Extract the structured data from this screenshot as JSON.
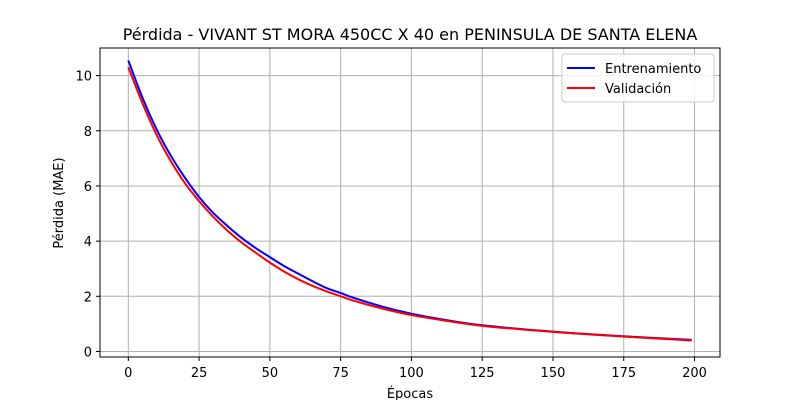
{
  "chart_data": {
    "type": "line",
    "title": "Pérdida - VIVANT ST MORA 450CC X 40 en PENINSULA DE SANTA ELENA",
    "xlabel": "Épocas",
    "ylabel": "Pérdida (MAE)",
    "xlim": [
      -10,
      209
    ],
    "ylim": [
      -0.2,
      11.0
    ],
    "xticks": [
      0,
      25,
      50,
      75,
      100,
      125,
      150,
      175,
      200
    ],
    "yticks": [
      0,
      2,
      4,
      6,
      8,
      10
    ],
    "grid": true,
    "legend_position": "top-right",
    "series": [
      {
        "name": "Entrenamiento",
        "color": "#0000ff",
        "x": [
          0,
          5,
          10,
          15,
          20,
          25,
          30,
          35,
          40,
          45,
          50,
          55,
          60,
          65,
          70,
          75,
          80,
          90,
          100,
          110,
          125,
          150,
          175,
          199
        ],
        "y": [
          10.55,
          9.2,
          8.05,
          7.1,
          6.3,
          5.6,
          5.02,
          4.55,
          4.12,
          3.75,
          3.42,
          3.1,
          2.82,
          2.55,
          2.3,
          2.12,
          1.93,
          1.62,
          1.37,
          1.18,
          0.95,
          0.72,
          0.55,
          0.42
        ]
      },
      {
        "name": "Validación",
        "color": "#ff0000",
        "x": [
          0,
          5,
          10,
          15,
          20,
          25,
          30,
          35,
          40,
          45,
          50,
          55,
          60,
          65,
          70,
          75,
          80,
          90,
          100,
          110,
          125,
          150,
          175,
          199
        ],
        "y": [
          10.3,
          9.0,
          7.85,
          6.9,
          6.1,
          5.45,
          4.88,
          4.38,
          3.95,
          3.58,
          3.22,
          2.9,
          2.62,
          2.38,
          2.18,
          2.0,
          1.83,
          1.55,
          1.32,
          1.15,
          0.93,
          0.71,
          0.54,
          0.4
        ]
      }
    ]
  }
}
